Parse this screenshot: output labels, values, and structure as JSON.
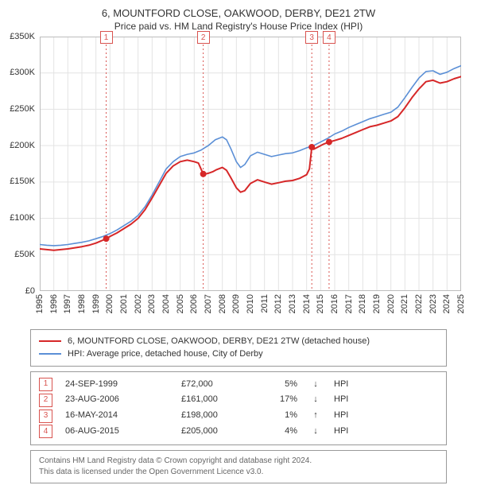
{
  "title": "6, MOUNTFORD CLOSE, OAKWOOD, DERBY, DE21 2TW",
  "subtitle": "Price paid vs. HM Land Registry's House Price Index (HPI)",
  "chart": {
    "type": "line",
    "background_color": "#ffffff",
    "grid_color": "#e3e3e3",
    "ylim": [
      0,
      350000
    ],
    "ytick_step": 50000,
    "yticks": [
      "£0",
      "£50K",
      "£100K",
      "£150K",
      "£200K",
      "£250K",
      "£300K",
      "£350K"
    ],
    "xlim": [
      1995,
      2025
    ],
    "xticks": [
      1995,
      1996,
      1997,
      1998,
      1999,
      2000,
      2001,
      2002,
      2003,
      2004,
      2005,
      2006,
      2007,
      2008,
      2009,
      2010,
      2011,
      2012,
      2013,
      2014,
      2015,
      2016,
      2017,
      2018,
      2019,
      2020,
      2021,
      2022,
      2023,
      2024,
      2025
    ],
    "series_price": {
      "label": "6, MOUNTFORD CLOSE, OAKWOOD, DERBY, DE21 2TW (detached house)",
      "color": "#d62728",
      "line_width": 2,
      "points": [
        [
          1995.0,
          58000
        ],
        [
          1995.5,
          57000
        ],
        [
          1996.0,
          56000
        ],
        [
          1996.5,
          57000
        ],
        [
          1997.0,
          58000
        ],
        [
          1997.5,
          59500
        ],
        [
          1998.0,
          61000
        ],
        [
          1998.5,
          63000
        ],
        [
          1999.0,
          66000
        ],
        [
          1999.5,
          70000
        ],
        [
          1999.73,
          72000
        ],
        [
          2000.0,
          75000
        ],
        [
          2000.5,
          80000
        ],
        [
          2001.0,
          86000
        ],
        [
          2001.5,
          92000
        ],
        [
          2002.0,
          100000
        ],
        [
          2002.5,
          112000
        ],
        [
          2003.0,
          128000
        ],
        [
          2003.5,
          145000
        ],
        [
          2004.0,
          162000
        ],
        [
          2004.5,
          172000
        ],
        [
          2005.0,
          178000
        ],
        [
          2005.5,
          180000
        ],
        [
          2006.0,
          178000
        ],
        [
          2006.3,
          176000
        ],
        [
          2006.64,
          161000
        ],
        [
          2006.8,
          161000
        ],
        [
          2007.0,
          162000
        ],
        [
          2007.3,
          164000
        ],
        [
          2007.6,
          167000
        ],
        [
          2008.0,
          170000
        ],
        [
          2008.3,
          166000
        ],
        [
          2008.6,
          156000
        ],
        [
          2009.0,
          142000
        ],
        [
          2009.3,
          136000
        ],
        [
          2009.6,
          138000
        ],
        [
          2010.0,
          148000
        ],
        [
          2010.5,
          153000
        ],
        [
          2011.0,
          150000
        ],
        [
          2011.5,
          147000
        ],
        [
          2012.0,
          149000
        ],
        [
          2012.5,
          151000
        ],
        [
          2013.0,
          152000
        ],
        [
          2013.5,
          155000
        ],
        [
          2014.0,
          160000
        ],
        [
          2014.2,
          168000
        ],
        [
          2014.37,
          198000
        ],
        [
          2014.5,
          195000
        ],
        [
          2014.8,
          198000
        ],
        [
          2015.2,
          202000
        ],
        [
          2015.6,
          205000
        ],
        [
          2016.0,
          207000
        ],
        [
          2016.5,
          210000
        ],
        [
          2017.0,
          214000
        ],
        [
          2017.5,
          218000
        ],
        [
          2018.0,
          222000
        ],
        [
          2018.5,
          226000
        ],
        [
          2019.0,
          228000
        ],
        [
          2019.5,
          231000
        ],
        [
          2020.0,
          234000
        ],
        [
          2020.5,
          240000
        ],
        [
          2021.0,
          252000
        ],
        [
          2021.5,
          266000
        ],
        [
          2022.0,
          278000
        ],
        [
          2022.5,
          288000
        ],
        [
          2023.0,
          290000
        ],
        [
          2023.5,
          286000
        ],
        [
          2024.0,
          288000
        ],
        [
          2024.5,
          292000
        ],
        [
          2025.0,
          295000
        ]
      ]
    },
    "series_hpi": {
      "label": "HPI: Average price, detached house, City of Derby",
      "color": "#5b8fd6",
      "line_width": 1.6,
      "points": [
        [
          1995.0,
          64000
        ],
        [
          1995.5,
          63000
        ],
        [
          1996.0,
          62500
        ],
        [
          1996.5,
          63000
        ],
        [
          1997.0,
          64000
        ],
        [
          1997.5,
          65500
        ],
        [
          1998.0,
          67000
        ],
        [
          1998.5,
          69000
        ],
        [
          1999.0,
          72000
        ],
        [
          1999.5,
          75000
        ],
        [
          2000.0,
          79000
        ],
        [
          2000.5,
          84000
        ],
        [
          2001.0,
          90000
        ],
        [
          2001.5,
          96000
        ],
        [
          2002.0,
          104000
        ],
        [
          2002.5,
          116000
        ],
        [
          2003.0,
          132000
        ],
        [
          2003.5,
          150000
        ],
        [
          2004.0,
          168000
        ],
        [
          2004.5,
          178000
        ],
        [
          2005.0,
          185000
        ],
        [
          2005.5,
          188000
        ],
        [
          2006.0,
          190000
        ],
        [
          2006.5,
          194000
        ],
        [
          2007.0,
          200000
        ],
        [
          2007.5,
          208000
        ],
        [
          2008.0,
          212000
        ],
        [
          2008.3,
          208000
        ],
        [
          2008.6,
          196000
        ],
        [
          2009.0,
          178000
        ],
        [
          2009.3,
          170000
        ],
        [
          2009.6,
          174000
        ],
        [
          2010.0,
          186000
        ],
        [
          2010.5,
          191000
        ],
        [
          2011.0,
          188000
        ],
        [
          2011.5,
          185000
        ],
        [
          2012.0,
          187000
        ],
        [
          2012.5,
          189000
        ],
        [
          2013.0,
          190000
        ],
        [
          2013.5,
          193000
        ],
        [
          2014.0,
          197000
        ],
        [
          2014.5,
          200000
        ],
        [
          2015.0,
          205000
        ],
        [
          2015.5,
          210000
        ],
        [
          2016.0,
          216000
        ],
        [
          2016.5,
          220000
        ],
        [
          2017.0,
          225000
        ],
        [
          2017.5,
          229000
        ],
        [
          2018.0,
          233000
        ],
        [
          2018.5,
          237000
        ],
        [
          2019.0,
          240000
        ],
        [
          2019.5,
          243000
        ],
        [
          2020.0,
          246000
        ],
        [
          2020.5,
          253000
        ],
        [
          2021.0,
          266000
        ],
        [
          2021.5,
          280000
        ],
        [
          2022.0,
          293000
        ],
        [
          2022.5,
          302000
        ],
        [
          2023.0,
          303000
        ],
        [
          2023.5,
          298000
        ],
        [
          2024.0,
          301000
        ],
        [
          2024.5,
          306000
        ],
        [
          2025.0,
          310000
        ]
      ]
    },
    "sale_markers": [
      {
        "idx": "1",
        "x": 1999.73,
        "y": 72000
      },
      {
        "idx": "2",
        "x": 2006.64,
        "y": 161000
      },
      {
        "idx": "3",
        "x": 2014.37,
        "y": 198000
      },
      {
        "idx": "4",
        "x": 2015.6,
        "y": 205000
      }
    ],
    "marker_color": "#d62728",
    "marker_line_color": "#d9534f",
    "marker_box_top_pct": -2
  },
  "legend": [
    {
      "color": "#d62728",
      "label": "6, MOUNTFORD CLOSE, OAKWOOD, DERBY, DE21 2TW (detached house)"
    },
    {
      "color": "#5b8fd6",
      "label": "HPI: Average price, detached house, City of Derby"
    }
  ],
  "sales": [
    {
      "idx": "1",
      "date": "24-SEP-1999",
      "price": "£72,000",
      "delta": "5%",
      "arrow": "↓",
      "vs": "HPI"
    },
    {
      "idx": "2",
      "date": "23-AUG-2006",
      "price": "£161,000",
      "delta": "17%",
      "arrow": "↓",
      "vs": "HPI"
    },
    {
      "idx": "3",
      "date": "16-MAY-2014",
      "price": "£198,000",
      "delta": "1%",
      "arrow": "↑",
      "vs": "HPI"
    },
    {
      "idx": "4",
      "date": "06-AUG-2015",
      "price": "£205,000",
      "delta": "4%",
      "arrow": "↓",
      "vs": "HPI"
    }
  ],
  "attribution": {
    "line1": "Contains HM Land Registry data © Crown copyright and database right 2024.",
    "line2": "This data is licensed under the Open Government Licence v3.0."
  }
}
